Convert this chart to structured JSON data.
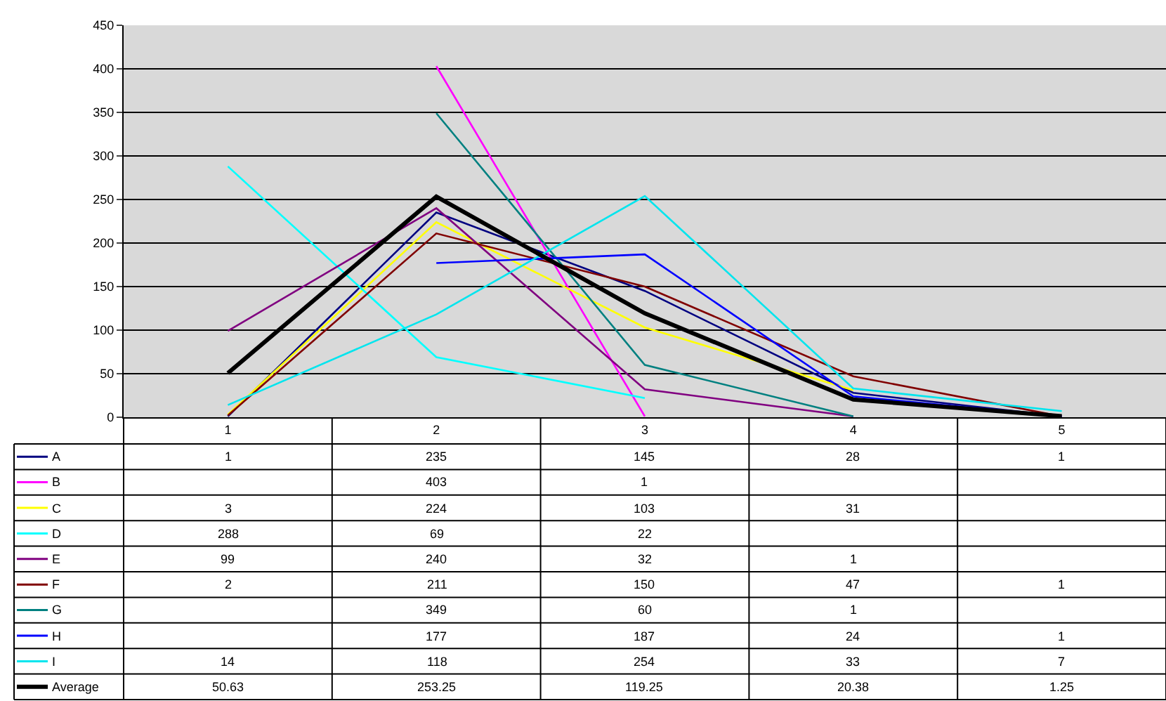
{
  "chart_data": {
    "type": "line",
    "categories": [
      "1",
      "2",
      "3",
      "4",
      "5"
    ],
    "series": [
      {
        "name": "A",
        "color": "#000080",
        "values": [
          1,
          235,
          145,
          28,
          1
        ]
      },
      {
        "name": "B",
        "color": "#ff00ff",
        "values": [
          null,
          403,
          1,
          null,
          null
        ]
      },
      {
        "name": "C",
        "color": "#ffff00",
        "values": [
          3,
          224,
          103,
          31,
          null
        ]
      },
      {
        "name": "D",
        "color": "#00ffff",
        "values": [
          288,
          69,
          22,
          null,
          null
        ]
      },
      {
        "name": "E",
        "color": "#800080",
        "values": [
          99,
          240,
          32,
          1,
          null
        ]
      },
      {
        "name": "F",
        "color": "#800000",
        "values": [
          2,
          211,
          150,
          47,
          1
        ]
      },
      {
        "name": "G",
        "color": "#008080",
        "values": [
          null,
          349,
          60,
          1,
          null
        ]
      },
      {
        "name": "H",
        "color": "#0000ff",
        "values": [
          null,
          177,
          187,
          24,
          1
        ]
      },
      {
        "name": "I",
        "color": "#00e5ee",
        "values": [
          14,
          118,
          254,
          33,
          7
        ]
      },
      {
        "name": "Average",
        "color": "#000000",
        "values": [
          50.63,
          253.25,
          119.25,
          20.38,
          1.25
        ]
      }
    ],
    "ylim": [
      0,
      450
    ],
    "yticks": [
      0,
      50,
      100,
      150,
      200,
      250,
      300,
      350,
      400,
      450
    ],
    "grid": "y",
    "legend": "bottom left",
    "data_labels": true,
    "marker": "none",
    "line_style": "solid"
  }
}
